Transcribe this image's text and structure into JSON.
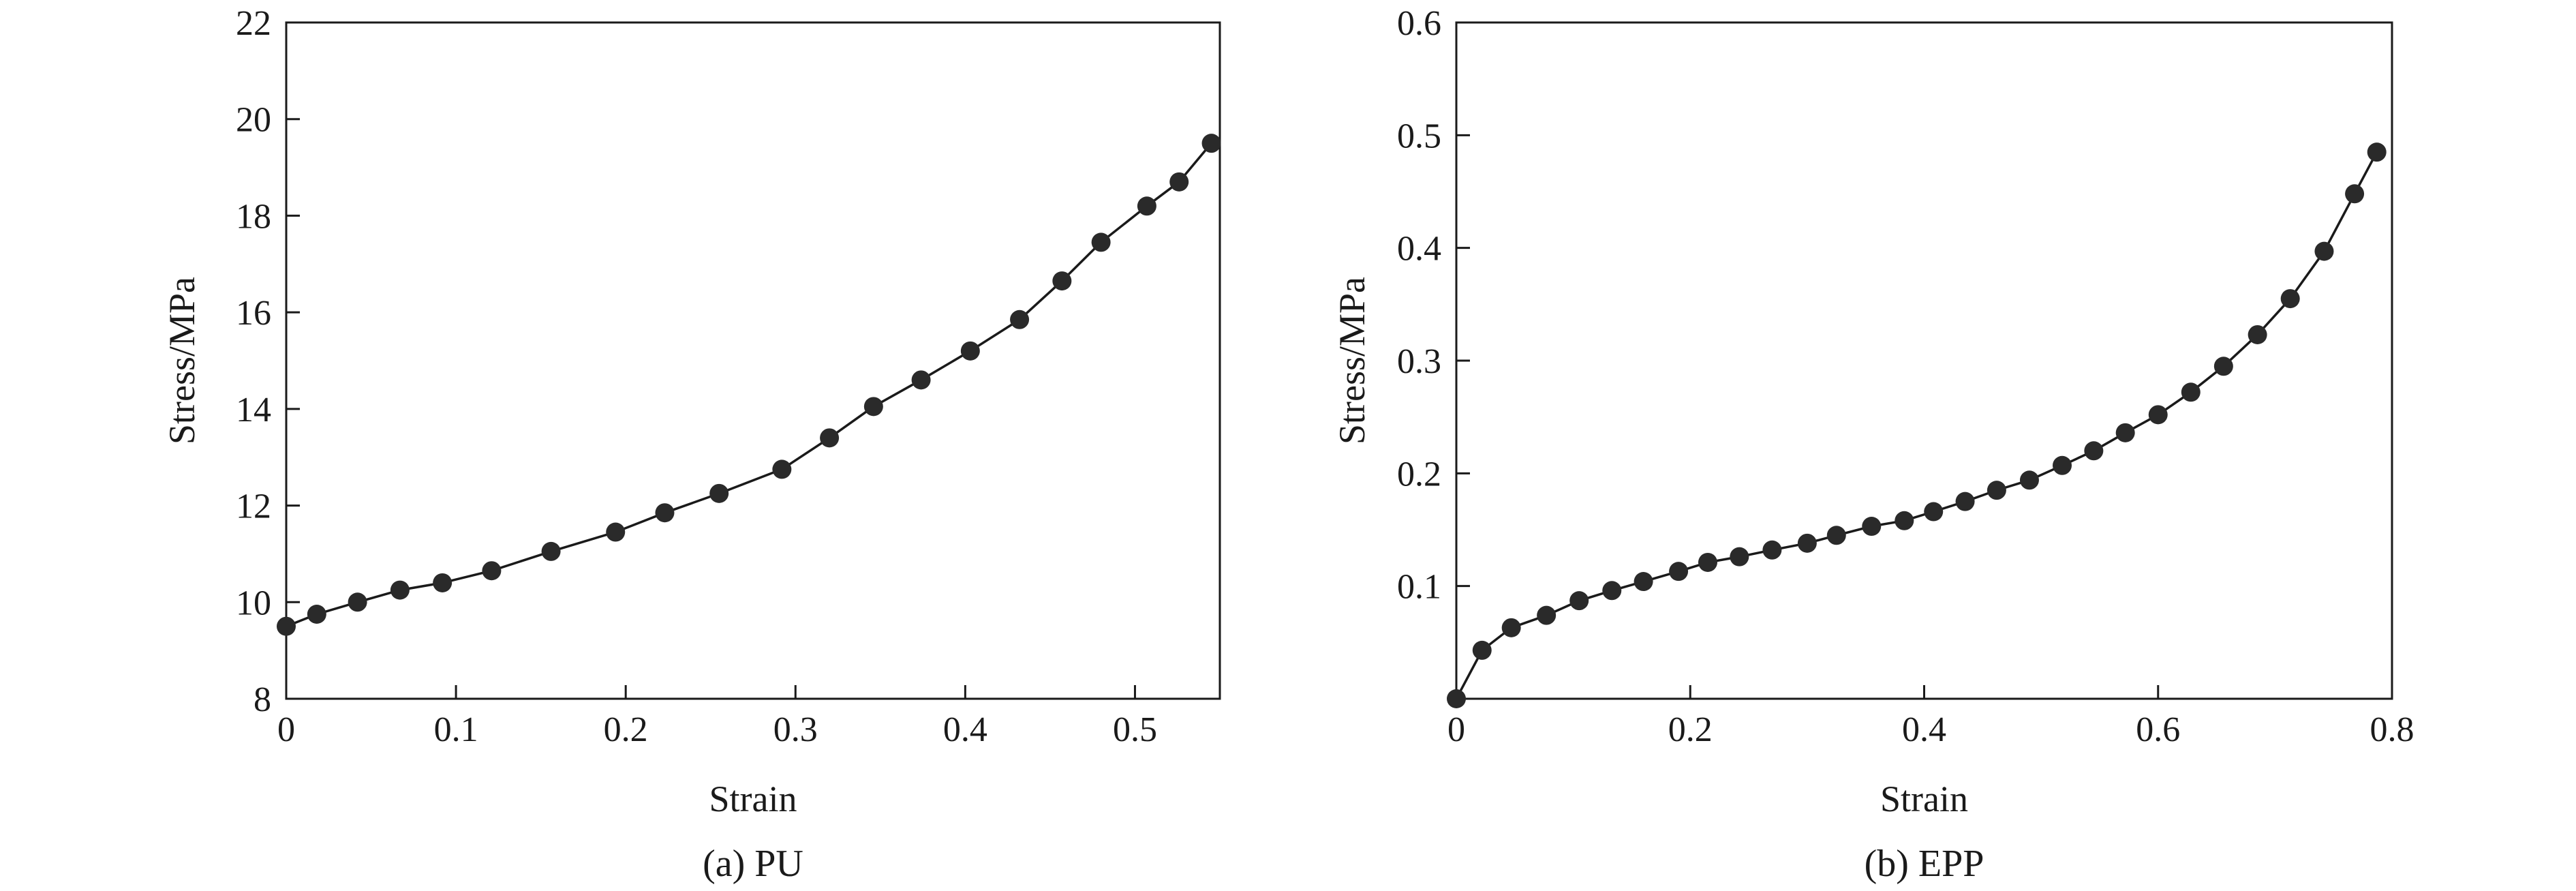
{
  "chart_data": [
    {
      "type": "line",
      "caption": "(a) PU",
      "xlabel": "Strain",
      "ylabel": "Stress/MPa",
      "xlim": [
        0,
        0.55
      ],
      "ylim": [
        8,
        22
      ],
      "xticks": [
        0,
        0.1,
        0.2,
        0.3,
        0.4,
        0.5
      ],
      "xtick_labels": [
        "0",
        "0.1",
        "0.2",
        "0.3",
        "0.4",
        "0.5"
      ],
      "yticks": [
        8,
        10,
        12,
        14,
        16,
        18,
        20,
        22
      ],
      "ytick_labels": [
        "8",
        "10",
        "12",
        "14",
        "16",
        "18",
        "20",
        "22"
      ],
      "grid": false,
      "markers": "filled-circle",
      "color": "#1a1a1a",
      "series": [
        {
          "x": [
            0.0,
            0.018,
            0.042,
            0.067,
            0.092,
            0.121,
            0.156,
            0.194,
            0.223,
            0.255,
            0.292,
            0.32,
            0.346,
            0.374,
            0.403,
            0.432,
            0.457,
            0.48,
            0.507,
            0.526,
            0.545
          ],
          "y": [
            9.5,
            9.75,
            10.0,
            10.25,
            10.4,
            10.65,
            11.05,
            11.45,
            11.85,
            12.25,
            12.75,
            13.4,
            14.05,
            14.6,
            15.2,
            15.85,
            16.65,
            17.45,
            18.2,
            18.7,
            19.5
          ]
        }
      ]
    },
    {
      "type": "line",
      "caption": "(b) EPP",
      "xlabel": "Strain",
      "ylabel": "Stress/MPa",
      "xlim": [
        0,
        0.8
      ],
      "ylim": [
        0,
        0.6
      ],
      "xticks": [
        0,
        0.2,
        0.4,
        0.6,
        0.8
      ],
      "xtick_labels": [
        "0",
        "0.2",
        "0.4",
        "0.6",
        "0.8"
      ],
      "yticks": [
        0.1,
        0.2,
        0.3,
        0.4,
        0.5,
        0.6
      ],
      "ytick_labels": [
        "0.1",
        "0.2",
        "0.3",
        "0.4",
        "0.5",
        "0.6"
      ],
      "grid": false,
      "markers": "filled-circle",
      "color": "#1a1a1a",
      "series": [
        {
          "x": [
            0.0,
            0.022,
            0.047,
            0.077,
            0.105,
            0.133,
            0.16,
            0.19,
            0.215,
            0.242,
            0.27,
            0.3,
            0.325,
            0.355,
            0.383,
            0.408,
            0.435,
            0.462,
            0.49,
            0.518,
            0.545,
            0.572,
            0.6,
            0.628,
            0.656,
            0.685,
            0.713,
            0.742,
            0.768,
            0.787
          ],
          "y": [
            0.0,
            0.043,
            0.063,
            0.074,
            0.087,
            0.096,
            0.104,
            0.113,
            0.121,
            0.126,
            0.132,
            0.138,
            0.145,
            0.153,
            0.158,
            0.166,
            0.175,
            0.185,
            0.194,
            0.207,
            0.22,
            0.236,
            0.252,
            0.272,
            0.295,
            0.323,
            0.355,
            0.397,
            0.448,
            0.485
          ]
        }
      ]
    }
  ]
}
